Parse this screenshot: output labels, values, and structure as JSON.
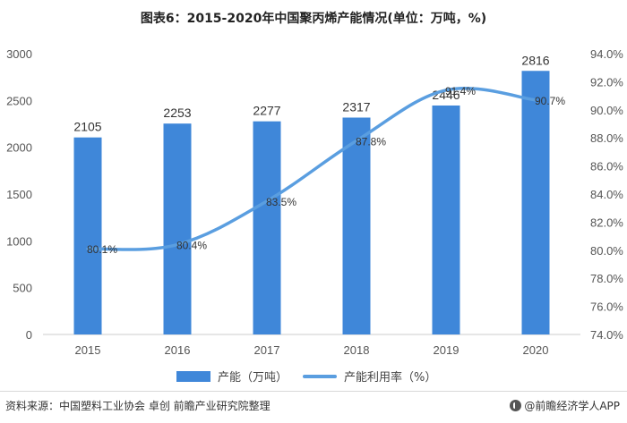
{
  "title": "图表6：2015-2020年中国聚丙烯产能情况(单位：万吨，%)",
  "legend": {
    "bar_label": "产能（万吨）",
    "line_label": "产能利用率（%）"
  },
  "footer": {
    "source": "资料来源：中国塑料工业协会 卓创 前瞻产业研究院整理",
    "brand": "@前瞻经济学人APP"
  },
  "colors": {
    "bar": "#3f87d9",
    "line": "#5a9ee0",
    "axis": "#cccccc"
  },
  "chart_data": {
    "type": "bar",
    "categories": [
      "2015",
      "2016",
      "2017",
      "2018",
      "2019",
      "2020"
    ],
    "series": [
      {
        "name": "产能（万吨）",
        "type": "bar",
        "axis": "left",
        "values": [
          2105,
          2253,
          2277,
          2317,
          2446,
          2816
        ]
      },
      {
        "name": "产能利用率（%）",
        "type": "line",
        "axis": "right",
        "smooth": true,
        "values": [
          80.1,
          80.4,
          83.5,
          87.8,
          91.4,
          90.7
        ],
        "labels": [
          "80.1%",
          "80.4%",
          "83.5%",
          "87.8%",
          "91.4%",
          "90.7%"
        ]
      }
    ],
    "y_left": {
      "range": [
        0,
        3000
      ],
      "ticks": [
        "0",
        "500",
        "1000",
        "1500",
        "2000",
        "2500",
        "3000"
      ]
    },
    "y_right": {
      "range": [
        74,
        94
      ],
      "ticks": [
        "74.0%",
        "76.0%",
        "78.0%",
        "80.0%",
        "82.0%",
        "84.0%",
        "86.0%",
        "88.0%",
        "90.0%",
        "92.0%",
        "94.0%"
      ]
    },
    "grid": false,
    "legend_position": "bottom"
  }
}
